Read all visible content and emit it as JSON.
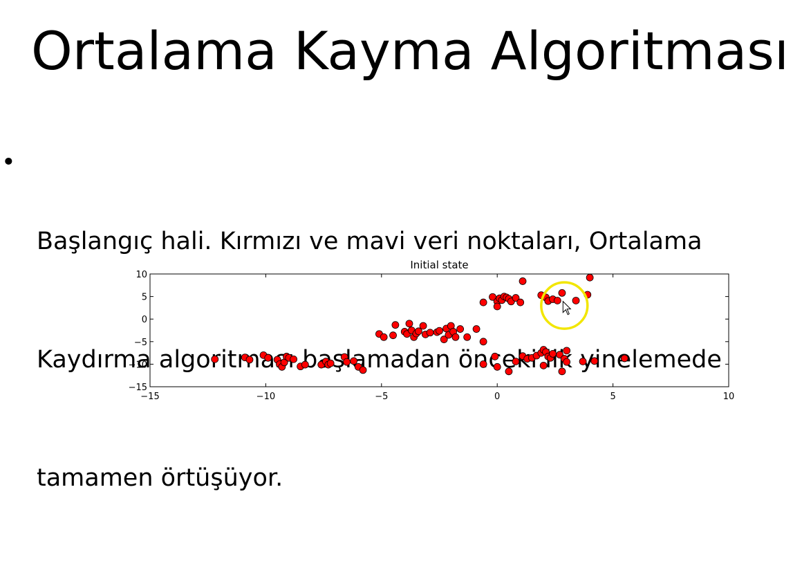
{
  "slide": {
    "title": "Ortalama Kayma Algoritması",
    "bullet_symbol": "•",
    "bullet_lines": [
      "Başlangıç hali. Kırmızı ve mavi veri noktaları, Ortalama",
      "Kaydırma algoritması başlamadan önceki ilk yinelemede",
      "tamamen örtüşüyor."
    ]
  },
  "chart_data": {
    "type": "scatter",
    "title": "Initial state",
    "xlim": [
      -15,
      10
    ],
    "ylim": [
      -15,
      10
    ],
    "xticks": [
      -15,
      -10,
      -5,
      0,
      5,
      10
    ],
    "yticks": [
      10,
      5,
      0,
      -5,
      -10,
      -15
    ],
    "xtick_labels": [
      "−15",
      "−10",
      "−5",
      "0",
      "5",
      "10"
    ],
    "ytick_labels": [
      "10",
      "5",
      "0",
      "−5",
      "−10",
      "−15"
    ],
    "grid": false,
    "marker_color": "#ff0000",
    "marker_edge": "#000000",
    "annotation_circle_color": "#f2e600",
    "annotation_circle": {
      "x": 2.9,
      "y": 3.0,
      "radius_x": 1.0
    },
    "cursor_icon": "mouse-pointer-icon",
    "points": [
      [
        -12.2,
        -8.9
      ],
      [
        -10.9,
        -8.5
      ],
      [
        -10.7,
        -9.0
      ],
      [
        -10.1,
        -8.0
      ],
      [
        -9.9,
        -8.6
      ],
      [
        -9.5,
        -9.0
      ],
      [
        -9.4,
        -10.0
      ],
      [
        -9.3,
        -10.6
      ],
      [
        -9.2,
        -9.6
      ],
      [
        -9.1,
        -8.3
      ],
      [
        -9.0,
        -8.6
      ],
      [
        -8.8,
        -8.9
      ],
      [
        -8.5,
        -10.5
      ],
      [
        -8.3,
        -10.1
      ],
      [
        -7.6,
        -10.1
      ],
      [
        -7.4,
        -9.4
      ],
      [
        -7.3,
        -10.1
      ],
      [
        -7.2,
        -9.8
      ],
      [
        -6.6,
        -8.4
      ],
      [
        -6.5,
        -9.5
      ],
      [
        -6.2,
        -9.3
      ],
      [
        -6.0,
        -10.6
      ],
      [
        -5.8,
        -11.3
      ],
      [
        -5.1,
        -3.3
      ],
      [
        -4.9,
        -4.0
      ],
      [
        -4.5,
        -3.6
      ],
      [
        -4.4,
        -1.3
      ],
      [
        -4.0,
        -2.8
      ],
      [
        -3.9,
        -3.3
      ],
      [
        -3.8,
        -1.0
      ],
      [
        -3.7,
        -2.5
      ],
      [
        -3.6,
        -4.0
      ],
      [
        -3.5,
        -3.2
      ],
      [
        -3.4,
        -2.7
      ],
      [
        -3.2,
        -1.5
      ],
      [
        -3.1,
        -3.4
      ],
      [
        -2.9,
        -3.0
      ],
      [
        -2.6,
        -2.9
      ],
      [
        -2.5,
        -2.6
      ],
      [
        -2.3,
        -4.5
      ],
      [
        -2.2,
        -2.1
      ],
      [
        -2.1,
        -3.5
      ],
      [
        -2.0,
        -1.5
      ],
      [
        -1.9,
        -2.8
      ],
      [
        -1.8,
        -4.0
      ],
      [
        -1.6,
        -2.2
      ],
      [
        -1.3,
        -4.0
      ],
      [
        -0.9,
        -2.2
      ],
      [
        -0.6,
        -5.0
      ],
      [
        -0.6,
        3.7
      ],
      [
        -0.2,
        4.9
      ],
      [
        0.0,
        3.9
      ],
      [
        0.0,
        2.8
      ],
      [
        0.1,
        4.6
      ],
      [
        0.2,
        4.2
      ],
      [
        0.3,
        5.0
      ],
      [
        0.4,
        4.8
      ],
      [
        0.5,
        4.5
      ],
      [
        0.6,
        3.9
      ],
      [
        0.8,
        4.7
      ],
      [
        1.0,
        3.7
      ],
      [
        1.1,
        8.4
      ],
      [
        1.9,
        5.3
      ],
      [
        2.1,
        4.8
      ],
      [
        2.2,
        4.0
      ],
      [
        2.4,
        4.4
      ],
      [
        2.6,
        4.1
      ],
      [
        2.8,
        5.8
      ],
      [
        3.4,
        4.1
      ],
      [
        3.9,
        5.4
      ],
      [
        4.0,
        9.2
      ],
      [
        -0.6,
        -10.0
      ],
      [
        -0.1,
        -8.3
      ],
      [
        0.0,
        -10.6
      ],
      [
        0.5,
        -11.6
      ],
      [
        0.8,
        -9.4
      ],
      [
        1.1,
        -8.2
      ],
      [
        1.3,
        -8.8
      ],
      [
        1.5,
        -8.6
      ],
      [
        1.7,
        -8.1
      ],
      [
        1.9,
        -7.5
      ],
      [
        2.0,
        -6.8
      ],
      [
        2.1,
        -7.3
      ],
      [
        2.2,
        -8.3
      ],
      [
        2.3,
        -8.6
      ],
      [
        2.4,
        -7.7
      ],
      [
        2.0,
        -10.3
      ],
      [
        2.7,
        -7.9
      ],
      [
        2.8,
        -11.6
      ],
      [
        2.9,
        -8.8
      ],
      [
        3.0,
        -9.5
      ],
      [
        3.0,
        -7.0
      ],
      [
        3.7,
        -9.4
      ],
      [
        4.2,
        -9.3
      ],
      [
        5.5,
        -8.7
      ]
    ]
  }
}
